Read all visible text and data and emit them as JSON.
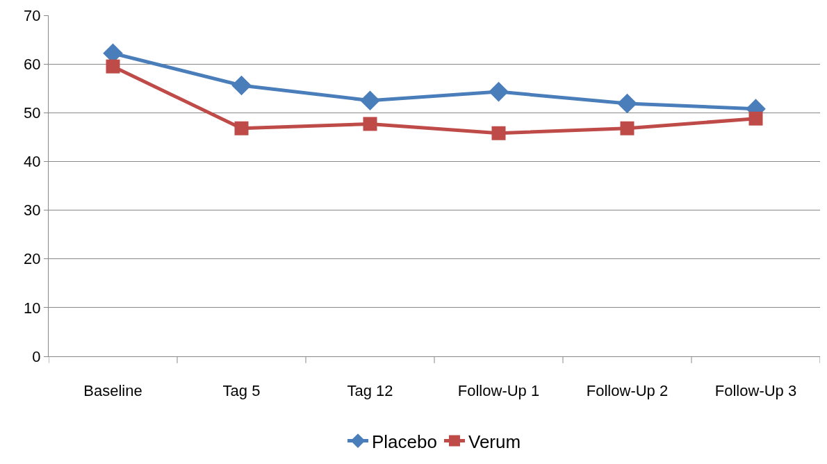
{
  "chart_data": {
    "type": "line",
    "categories": [
      "Baseline",
      "Tag 5",
      "Tag 12",
      "Follow-Up 1",
      "Follow-Up 2",
      "Follow-Up 3"
    ],
    "series": [
      {
        "name": "Placebo",
        "color": "#4a7ebb",
        "marker": "diamond",
        "values": [
          62.2,
          55.6,
          52.5,
          54.3,
          51.9,
          50.8
        ]
      },
      {
        "name": "Verum",
        "color": "#be4b48",
        "marker": "square",
        "values": [
          59.5,
          46.8,
          47.7,
          45.8,
          46.8,
          48.8
        ]
      }
    ],
    "ylim": [
      0,
      70
    ],
    "yticks": [
      0,
      10,
      20,
      30,
      40,
      50,
      60,
      70
    ],
    "grid": "y",
    "legend": "bottom"
  }
}
